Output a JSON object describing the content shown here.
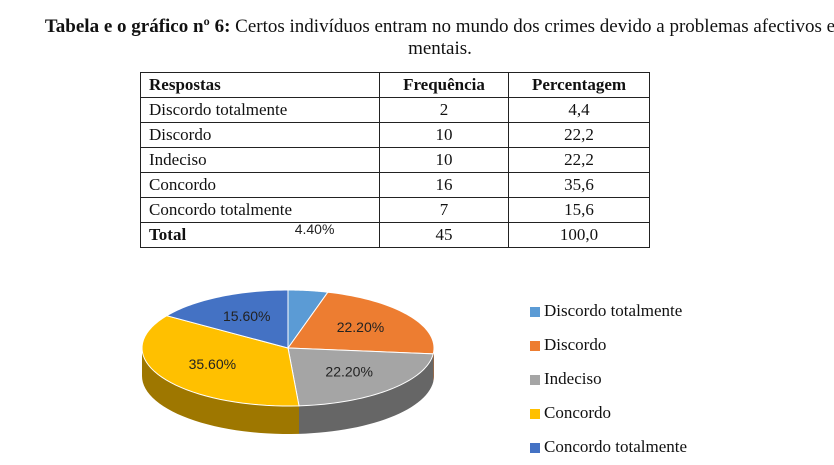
{
  "header": {
    "label": "Tabela e o gráfico nº 6:",
    "text": "Certos indivíduos entram no mundo dos crimes devido a problemas afectivos e mentais."
  },
  "table": {
    "columns": [
      "Respostas",
      "Frequência",
      "Percentagem"
    ],
    "rows": [
      [
        "Discordo totalmente",
        "2",
        "4,4"
      ],
      [
        "Discordo",
        "10",
        "22,2"
      ],
      [
        "Indeciso",
        "10",
        "22,2"
      ],
      [
        "Concordo",
        "16",
        "35,6"
      ],
      [
        "Concordo totalmente",
        "7",
        "15,6"
      ],
      [
        "Total",
        "45",
        "100,0"
      ]
    ]
  },
  "chart_data": {
    "type": "pie",
    "categories": [
      "Discordo totalmente",
      "Discordo",
      "Indeciso",
      "Concordo",
      "Concordo totalmente"
    ],
    "values": [
      4.4,
      22.2,
      22.2,
      35.6,
      15.6
    ],
    "value_labels": [
      "4.40%",
      "22.20%",
      "22.20%",
      "35.60%",
      "15.60%"
    ],
    "colors": [
      "#5b9bd5",
      "#ed7d31",
      "#a5a5a5",
      "#ffc000",
      "#4472c4"
    ],
    "legend": "right"
  }
}
